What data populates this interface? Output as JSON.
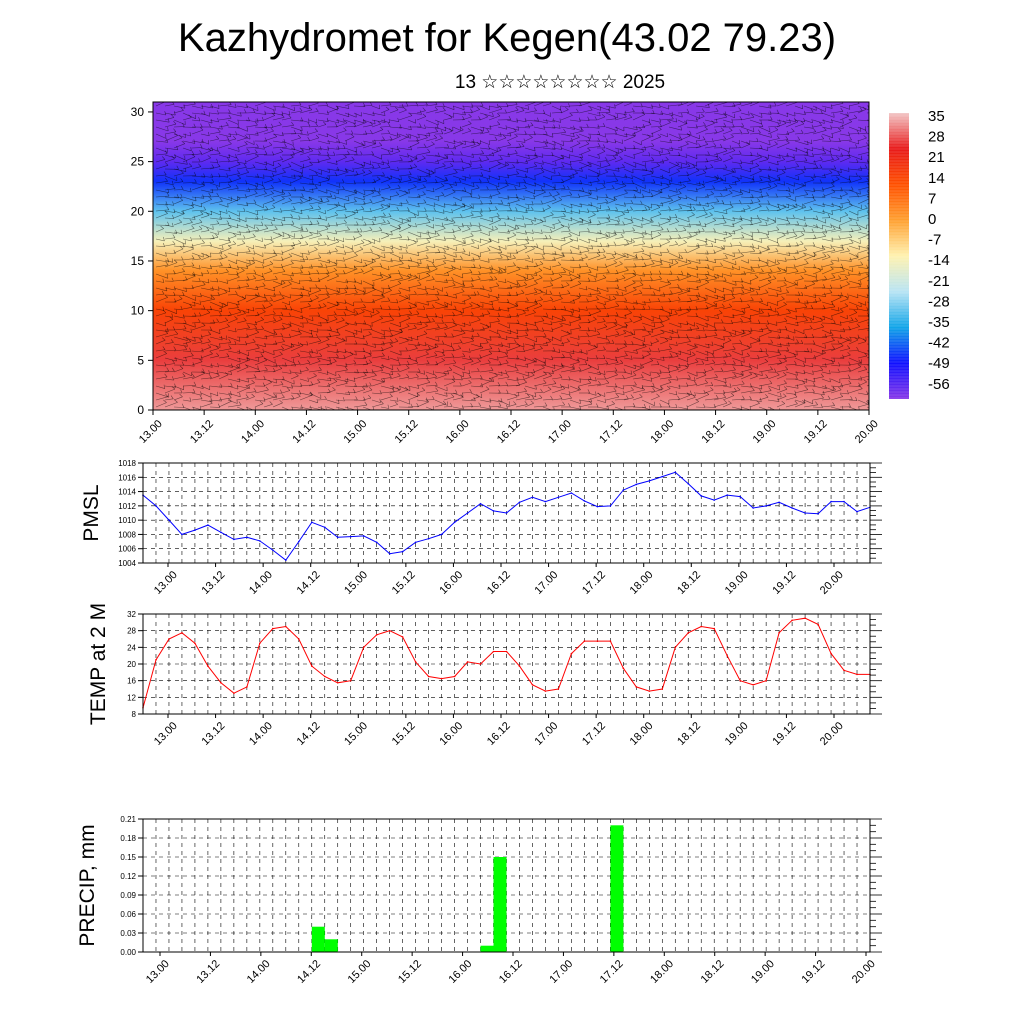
{
  "header": {
    "title": "Kazhydromet for Kegen(43.02 79.23)",
    "date": "13 ☆☆☆☆☆☆☆☆ 2025"
  },
  "time_ticks": [
    "13.00",
    "13.12",
    "14.00",
    "14.12",
    "15.00",
    "15.12",
    "16.00",
    "16.12",
    "17.00",
    "17.12",
    "18.00",
    "18.12",
    "19.00",
    "19.12",
    "20.00"
  ],
  "colorbar": {
    "labels": [
      "35",
      "28",
      "21",
      "14",
      "7",
      "0",
      "-7",
      "-14",
      "-21",
      "-28",
      "-35",
      "-42",
      "-49",
      "-56"
    ],
    "colors": [
      "#f2c6c6",
      "#e81a1a",
      "#ff5000",
      "#ffa030",
      "#fff2b0",
      "#b8e4f4",
      "#10a4e8",
      "#1010ff",
      "#8838e8"
    ]
  },
  "colors": {
    "pmsl_line": "#0000ff",
    "temp_line": "#ff0000",
    "precip_bar": "#00ff00"
  },
  "chart_data": [
    {
      "type": "heatmap",
      "name": "vertical cross-section",
      "x": "time",
      "y_ticks": [
        "0",
        "5",
        "10",
        "15",
        "20",
        "25",
        "30"
      ],
      "ylim": [
        0,
        31
      ],
      "color_scale": [
        -56,
        35
      ],
      "profile": [
        {
          "h": 0,
          "v": 32
        },
        {
          "h": 5,
          "v": 26
        },
        {
          "h": 10,
          "v": 15
        },
        {
          "h": 14,
          "v": 3
        },
        {
          "h": 17,
          "v": -12
        },
        {
          "h": 20,
          "v": -28
        },
        {
          "h": 23,
          "v": -42
        },
        {
          "h": 25,
          "v": -52
        },
        {
          "h": 27,
          "v": -58
        },
        {
          "h": 31,
          "v": -60
        }
      ],
      "overlay": "wind barbs"
    },
    {
      "type": "line",
      "ylabel": "PMSL",
      "yticks": [
        "1004",
        "1006",
        "1008",
        "1010",
        "1012",
        "1014",
        "1016",
        "1018"
      ],
      "ylim": [
        1004,
        1018
      ],
      "values": [
        1013.5,
        1012,
        1010,
        1008,
        1008.6,
        1009.3,
        1008.3,
        1007.3,
        1007.6,
        1007.1,
        1005.8,
        1004.4,
        1007,
        1009.7,
        1009,
        1007.6,
        1007.7,
        1007.8,
        1006.9,
        1005.3,
        1005.6,
        1006.9,
        1007.4,
        1008,
        1009.7,
        1011,
        1012.3,
        1011.3,
        1011,
        1012.5,
        1013.2,
        1012.6,
        1013.2,
        1013.8,
        1012.7,
        1011.9,
        1012,
        1014.2,
        1015,
        1015.5,
        1016.1,
        1016.7,
        1015.1,
        1013.4,
        1012.8,
        1013.5,
        1013.3,
        1011.7,
        1012,
        1012.5,
        1011.7,
        1011,
        1010.9,
        1012.6,
        1012.6,
        1011.2,
        1011.8
      ]
    },
    {
      "type": "line",
      "ylabel": "TEMP at 2 M",
      "yticks": [
        "8",
        "12",
        "16",
        "20",
        "24",
        "28",
        "32"
      ],
      "ylim": [
        8,
        32
      ],
      "values": [
        9.5,
        21,
        26,
        27.5,
        25,
        19.5,
        15.5,
        13,
        14.5,
        25,
        28.5,
        29,
        26,
        19.5,
        17,
        15.5,
        16,
        24,
        27,
        28,
        26.5,
        20.5,
        17,
        16.5,
        17,
        20.5,
        20,
        23,
        23,
        19.5,
        15,
        13.5,
        14,
        22.5,
        25.5,
        25.5,
        25.5,
        19,
        14.5,
        13.5,
        14,
        24,
        27.5,
        29,
        28.5,
        22,
        16,
        15,
        16,
        27.5,
        30.5,
        31,
        29.5,
        22.5,
        18.5,
        17.5,
        17.5
      ]
    },
    {
      "type": "bar",
      "ylabel": "PRECIP, mm",
      "yticks": [
        "0.00",
        "0.03",
        "0.06",
        "0.09",
        "0.12",
        "0.15",
        "0.18",
        "0.21"
      ],
      "ylim": [
        0,
        0.21
      ],
      "bars": [
        {
          "t": 13.5,
          "value": 0.04
        },
        {
          "t": 14.5,
          "value": 0.02
        },
        {
          "t": 26.5,
          "value": 0.01
        },
        {
          "t": 27.5,
          "value": 0.15
        },
        {
          "t": 36.5,
          "value": 0.2
        }
      ]
    }
  ]
}
